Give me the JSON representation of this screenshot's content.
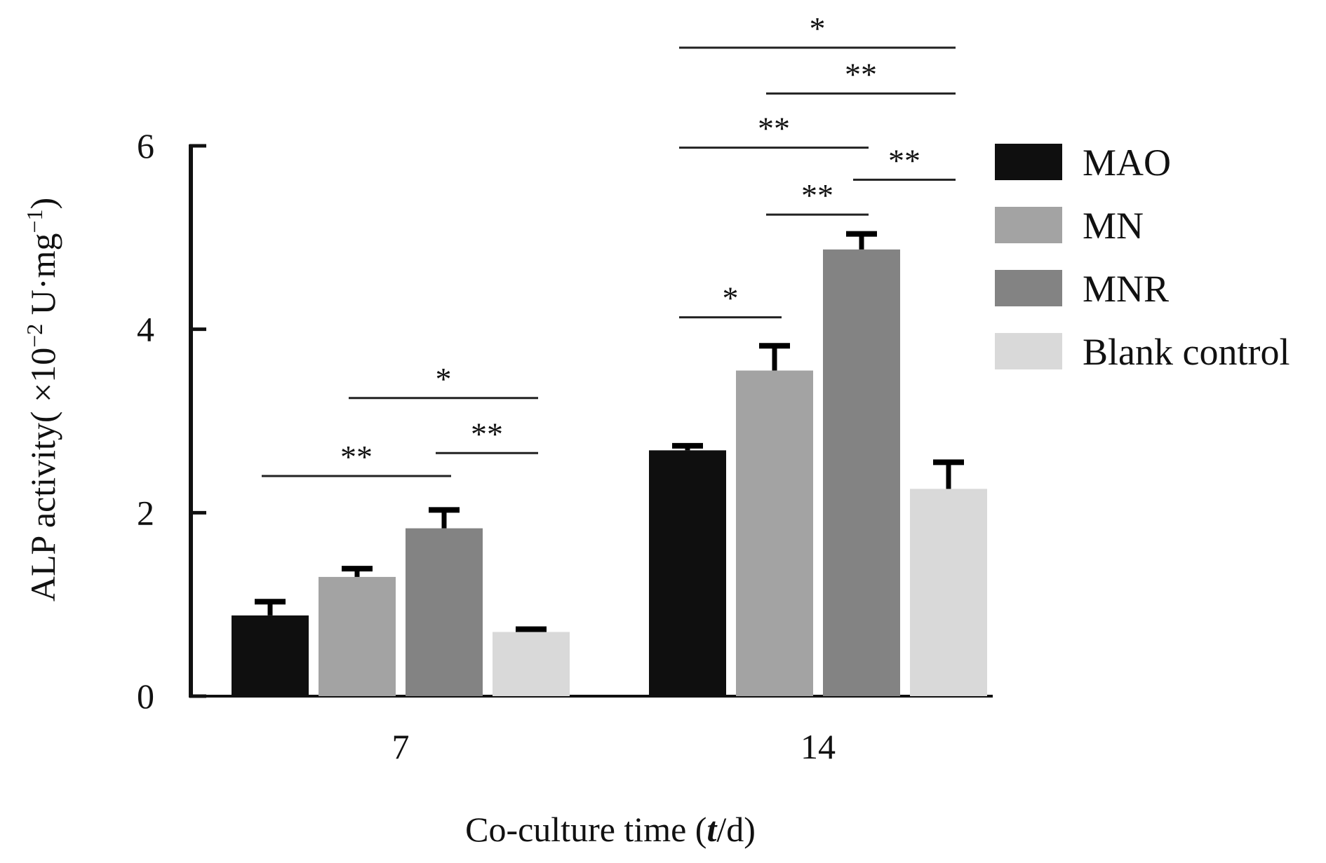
{
  "chart_data": {
    "type": "bar",
    "categories": [
      "7",
      "14"
    ],
    "xlabel_main": "Co-culture time (",
    "xlabel_var": "t",
    "xlabel_unit": "/d)",
    "ylabel_main": "ALP activity( ×10",
    "ylabel_exp": "−2",
    "ylabel_unit": " U·mg",
    "ylabel_unit_exp": "−1",
    "ylabel_close": ")",
    "ylim": [
      0,
      6
    ],
    "yticks": [
      0,
      2,
      4,
      6
    ],
    "legend_position": "right",
    "series": [
      {
        "name": "MAO",
        "color": "#0f0f0f",
        "values": [
          0.88,
          2.68
        ],
        "errors": [
          0.15,
          0.05
        ]
      },
      {
        "name": "MN",
        "color": "#a3a3a3",
        "values": [
          1.3,
          3.55
        ],
        "errors": [
          0.09,
          0.27
        ]
      },
      {
        "name": "MNR",
        "color": "#838383",
        "values": [
          1.83,
          4.87
        ],
        "errors": [
          0.2,
          0.17
        ]
      },
      {
        "name": "Blank control",
        "color": "#d9d9d9",
        "values": [
          0.7,
          2.26
        ],
        "errors": [
          0.03,
          0.29
        ]
      }
    ],
    "significance": [
      {
        "category": 0,
        "from": 0,
        "to": 2,
        "label": "**",
        "level": 2.4
      },
      {
        "category": 0,
        "from": 1,
        "to": 3,
        "label": "*",
        "level": 3.25
      },
      {
        "category": 0,
        "from": 2,
        "to": 3,
        "label": "**",
        "level": 2.65
      },
      {
        "category": 1,
        "from": 0,
        "to": 1,
        "label": "*",
        "level": 4.13
      },
      {
        "category": 1,
        "from": 1,
        "to": 2,
        "label": "**",
        "level": 5.25
      },
      {
        "category": 1,
        "from": 2,
        "to": 3,
        "label": "**",
        "level": 5.63
      },
      {
        "category": 1,
        "from": 0,
        "to": 2,
        "label": "**",
        "level": 5.98
      },
      {
        "category": 1,
        "from": 1,
        "to": 3,
        "label": "**",
        "level": 6.57
      },
      {
        "category": 1,
        "from": 0,
        "to": 3,
        "label": "*",
        "level": 7.07
      }
    ]
  }
}
